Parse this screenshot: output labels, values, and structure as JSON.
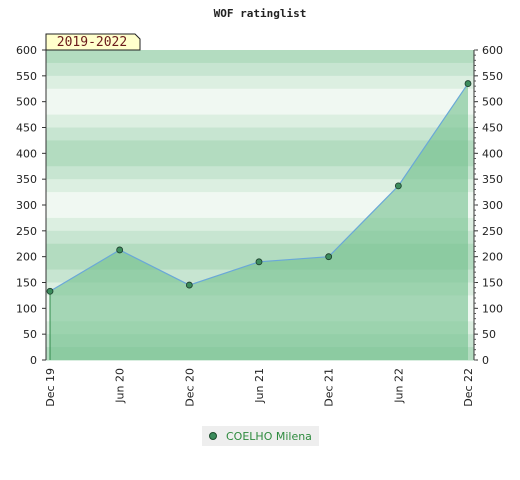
{
  "chart_data": {
    "type": "area",
    "title": "WOF ratinglist",
    "period_label": "2019-2022",
    "x": [
      "Dec 19",
      "Jun 20",
      "Dec 20",
      "Jun 21",
      "Dec 21",
      "Jun 22",
      "Dec 22"
    ],
    "series": [
      {
        "name": "COELHO Milena",
        "values": [
          133,
          213,
          145,
          190,
          200,
          337,
          535
        ]
      }
    ],
    "ylim": [
      0,
      600
    ],
    "yticks": [
      0,
      50,
      100,
      150,
      200,
      250,
      300,
      350,
      400,
      450,
      500,
      550,
      600
    ],
    "xlabel": "",
    "ylabel": "",
    "legend_position": "bottom-center",
    "grid": false,
    "colors": {
      "line": "#6aa8d8",
      "fill": "#72bf8c",
      "marker": "#3c8c5c",
      "band_dark": "#b3dcc0",
      "band_light": "#f0f8f2",
      "label_bg": "#ffffcc"
    }
  }
}
